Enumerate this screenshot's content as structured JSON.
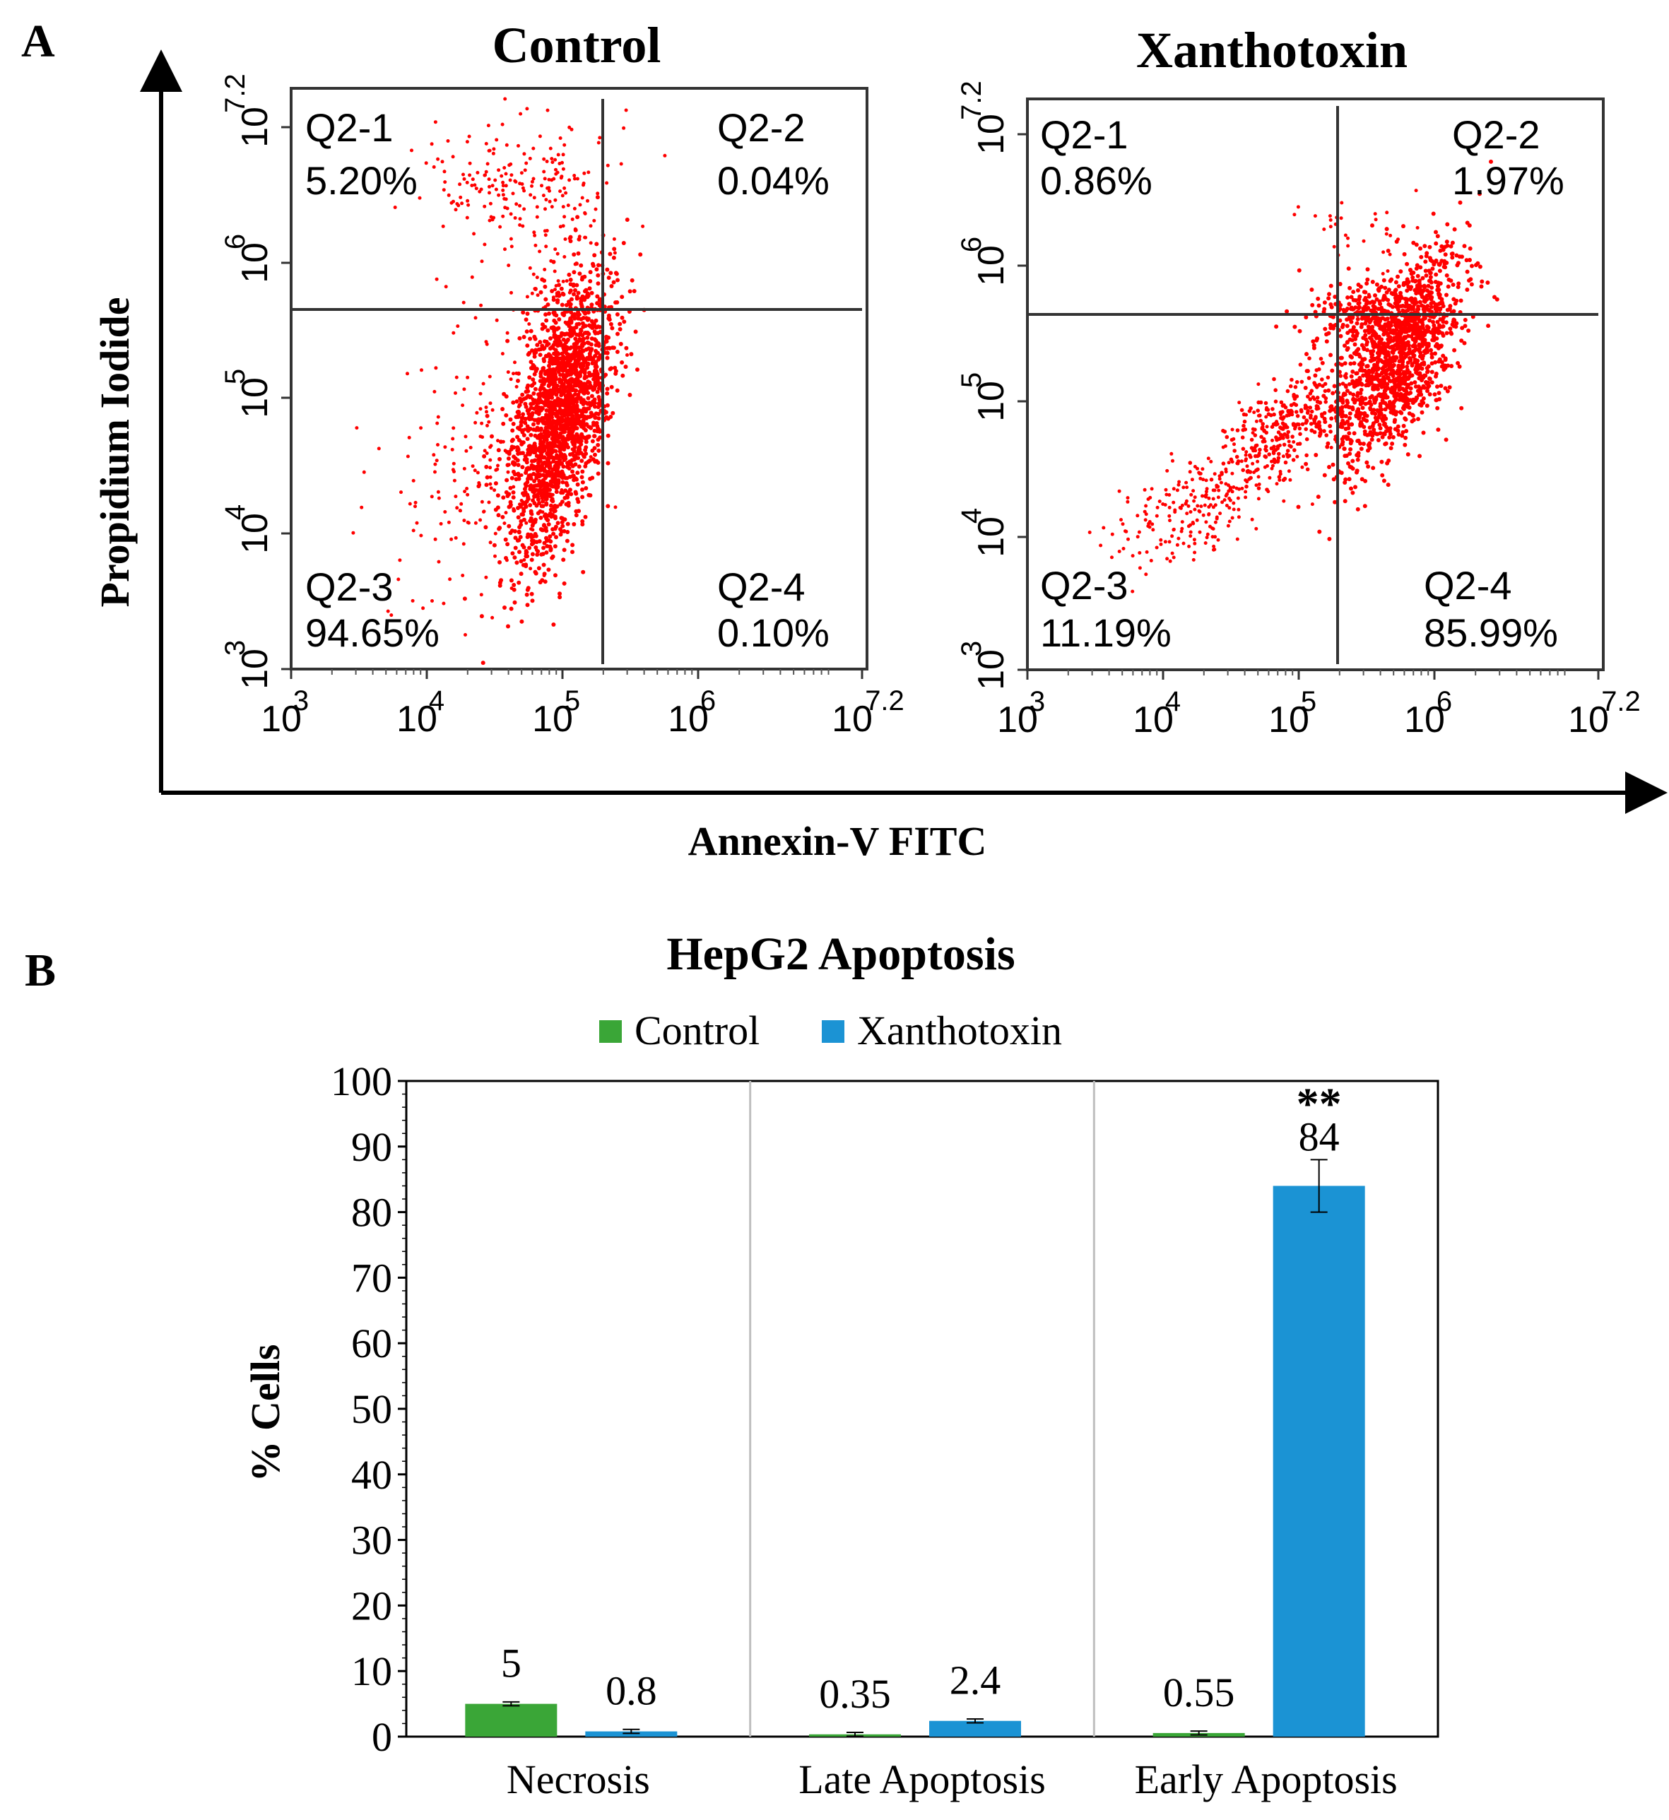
{
  "colors": {
    "dots": "#ff0000",
    "control": "#3aa637",
    "xanthotoxin": "#1b93d4",
    "axis": "#000000",
    "quadrant_line": "#333333",
    "gridline": "#bfbfbf"
  },
  "panel_a": {
    "label": "A",
    "y_axis_label": "Propidium Iodide",
    "x_axis_label": "Annexin-V FITC",
    "tick_base": "10",
    "tick_exponents": [
      "3",
      "4",
      "5",
      "6",
      "7.2"
    ],
    "plots": [
      {
        "title": "Control",
        "quadrants": [
          {
            "name": "Q2-1",
            "value": "5.20%"
          },
          {
            "name": "Q2-2",
            "value": "0.04%"
          },
          {
            "name": "Q2-3",
            "value": "94.65%"
          },
          {
            "name": "Q2-4",
            "value": "0.10%"
          }
        ]
      },
      {
        "title": "Xanthotoxin",
        "quadrants": [
          {
            "name": "Q2-1",
            "value": "0.86%"
          },
          {
            "name": "Q2-2",
            "value": "1.97%"
          },
          {
            "name": "Q2-3",
            "value": "11.19%"
          },
          {
            "name": "Q2-4",
            "value": "85.99%"
          }
        ]
      }
    ]
  },
  "panel_b": {
    "label": "B",
    "significance": "**"
  },
  "chart_data": {
    "type": "bar",
    "title": "HepG2 Apoptosis",
    "xlabel": "",
    "ylabel": "% Cells",
    "ylim": [
      0,
      100
    ],
    "yticks": [
      "0",
      "10",
      "20",
      "30",
      "40",
      "50",
      "60",
      "70",
      "80",
      "90",
      "100"
    ],
    "categories": [
      "Necrosis",
      "Late Apoptosis",
      "Early Apoptosis"
    ],
    "legend_position": "top",
    "series": [
      {
        "name": "Control",
        "values": [
          5,
          0.35,
          0.55
        ],
        "labels": [
          "5",
          "0.35",
          "0.55"
        ]
      },
      {
        "name": "Xanthotoxin",
        "values": [
          0.8,
          2.4,
          84
        ],
        "labels": [
          "0.8",
          "2.4",
          "84"
        ]
      }
    ]
  }
}
